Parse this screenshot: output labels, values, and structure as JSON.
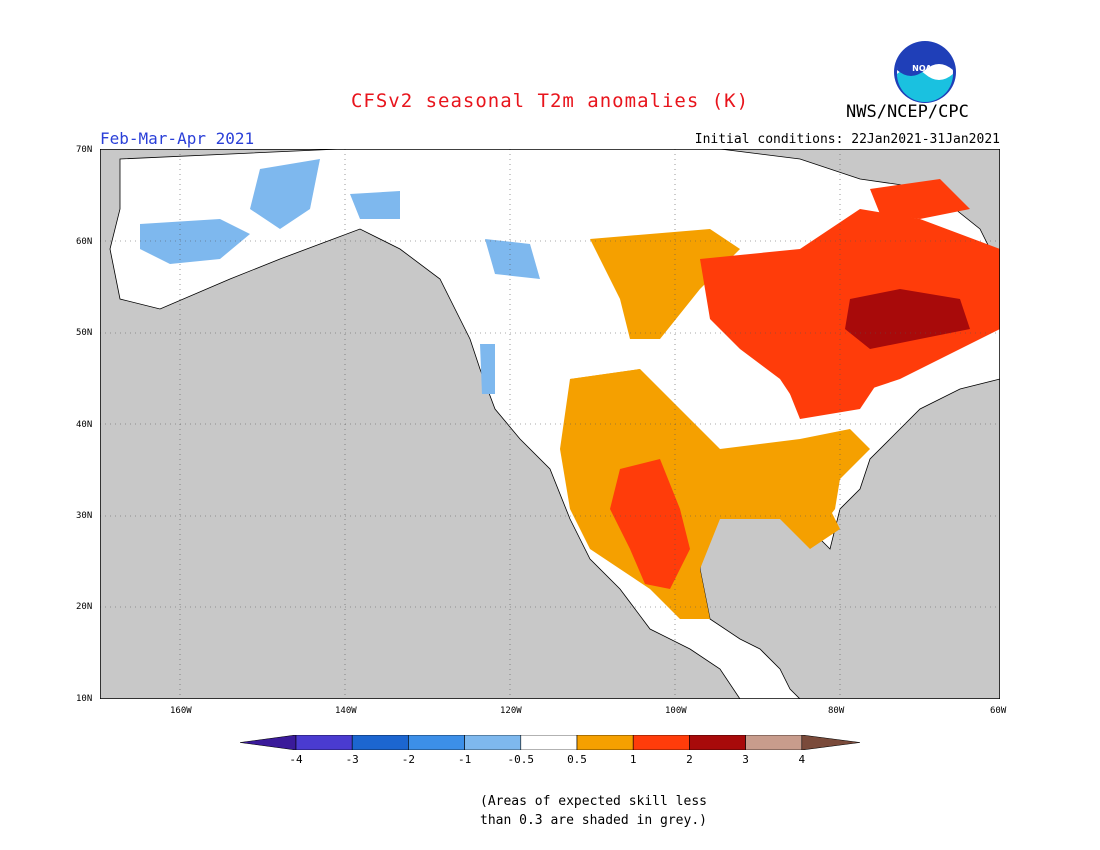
{
  "title": "CFSv2 seasonal T2m anomalies (K)",
  "period": "Feb-Mar-Apr 2021",
  "initial_conditions": "Initial conditions: 22Jan2021-31Jan2021",
  "agency": "NWS/NCEP/CPC",
  "logo_text": "NOAA",
  "lat_labels": [
    "70N",
    "60N",
    "50N",
    "40N",
    "30N",
    "20N",
    "10N"
  ],
  "lon_labels": [
    "160W",
    "140W",
    "120W",
    "100W",
    "80W",
    "60W"
  ],
  "colorbar": {
    "labels": [
      "-4",
      "-3",
      "-2",
      "-1",
      "-0.5",
      "0.5",
      "1",
      "2",
      "3",
      "4"
    ],
    "colors": [
      "#3a1a9a",
      "#4a3bd0",
      "#1c66d0",
      "#3c8fe8",
      "#7eb8ee",
      "#ffffff",
      "#f5a000",
      "#ff3c0a",
      "#a80a0a",
      "#c89c8c",
      "#7a4a3a"
    ]
  },
  "note_line1": "(Areas of expected skill less",
  "note_line2": "than 0.3 are shaded in grey.)",
  "map_colors": {
    "ocean": "#c8c8c8",
    "no_skill": "#c8c8c8",
    "neutral": "#ffffff",
    "warm_0_5_1": "#f5a000",
    "warm_1_2": "#ff3c0a",
    "warm_2_3": "#a80a0a",
    "cool_0_5_1": "#7eb8ee",
    "cool_1_2": "#3c8fe8"
  }
}
